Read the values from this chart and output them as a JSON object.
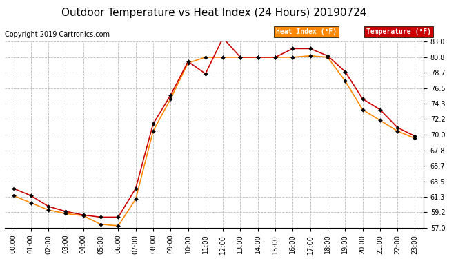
{
  "title": "Outdoor Temperature vs Heat Index (24 Hours) 20190724",
  "copyright": "Copyright 2019 Cartronics.com",
  "hours": [
    "00:00",
    "01:00",
    "02:00",
    "03:00",
    "04:00",
    "05:00",
    "06:00",
    "07:00",
    "08:00",
    "09:00",
    "10:00",
    "11:00",
    "12:00",
    "13:00",
    "14:00",
    "15:00",
    "16:00",
    "17:00",
    "18:00",
    "19:00",
    "20:00",
    "21:00",
    "22:00",
    "23:00"
  ],
  "temperature": [
    62.5,
    61.5,
    60.0,
    59.3,
    58.8,
    58.5,
    58.5,
    62.5,
    71.5,
    75.5,
    80.2,
    78.5,
    83.5,
    80.8,
    80.8,
    80.8,
    82.0,
    82.0,
    81.0,
    78.8,
    75.0,
    73.5,
    71.0,
    69.8
  ],
  "heat_index": [
    61.5,
    60.5,
    59.5,
    59.0,
    58.7,
    57.5,
    57.3,
    61.0,
    70.5,
    75.0,
    80.0,
    80.8,
    80.8,
    80.8,
    80.8,
    80.8,
    80.8,
    81.0,
    80.8,
    77.5,
    73.5,
    72.0,
    70.5,
    69.5
  ],
  "temp_color": "#cc0000",
  "heat_index_color": "#ff8800",
  "ylim_min": 57.0,
  "ylim_max": 83.0,
  "yticks": [
    57.0,
    59.2,
    61.3,
    63.5,
    65.7,
    67.8,
    70.0,
    72.2,
    74.3,
    76.5,
    78.7,
    80.8,
    83.0
  ],
  "bg_color": "#ffffff",
  "grid_color": "#bbbbbb",
  "legend_heat_bg": "#ff8800",
  "legend_temp_bg": "#cc0000",
  "title_fontsize": 11,
  "copyright_fontsize": 7,
  "tick_fontsize": 7,
  "legend_fontsize": 7
}
